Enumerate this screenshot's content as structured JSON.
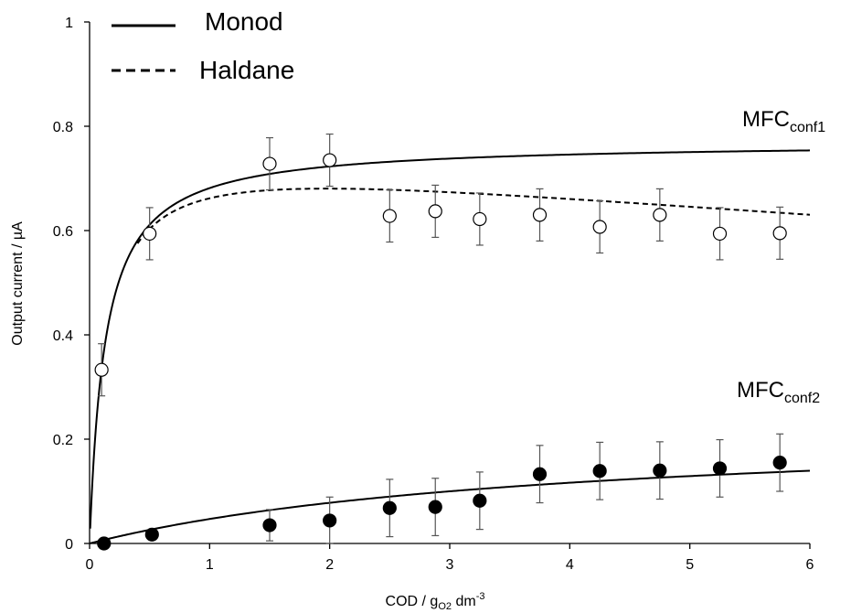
{
  "chart_data": {
    "type": "scatter",
    "xlabel": {
      "main": "COD / g",
      "sub": "O2",
      "mid": " dm",
      "sup": "-3"
    },
    "ylabel": "Output current  / µA",
    "xlim": [
      0,
      6
    ],
    "ylim": [
      0,
      1
    ],
    "x_ticks": [
      0,
      1,
      2,
      3,
      4,
      5,
      6
    ],
    "y_ticks": [
      0,
      0.2,
      0.4,
      0.6,
      0.8,
      1
    ],
    "x_tick_labels": [
      "0",
      "1",
      "2",
      "3",
      "4",
      "5",
      "6"
    ],
    "y_tick_labels": [
      "0",
      "0.2",
      "0.4",
      "0.6",
      "0.8",
      "1"
    ],
    "grid": false,
    "legend_position": "top-left",
    "legend": [
      {
        "label": "Monod",
        "style": "solid"
      },
      {
        "label": "Haldane",
        "style": "dashed"
      }
    ],
    "annotations": [
      {
        "main": "MFC",
        "sub": "conf1"
      },
      {
        "main": "MFC",
        "sub": "conf2"
      }
    ],
    "series": [
      {
        "marker": "open-circle",
        "x": [
          0.1,
          0.5,
          1.5,
          2.0,
          2.5,
          2.88,
          3.25,
          3.75,
          4.25,
          4.75,
          5.25,
          5.75
        ],
        "y": [
          0.333,
          0.594,
          0.728,
          0.735,
          0.628,
          0.637,
          0.622,
          0.63,
          0.607,
          0.63,
          0.594,
          0.595
        ],
        "err": [
          0.05,
          0.05,
          0.05,
          0.05,
          0.05,
          0.05,
          0.05,
          0.05,
          0.05,
          0.05,
          0.05,
          0.05
        ]
      },
      {
        "marker": "filled-circle",
        "x": [
          0.12,
          0.52,
          1.5,
          2.0,
          2.5,
          2.88,
          3.25,
          3.75,
          4.25,
          4.75,
          5.25,
          5.75
        ],
        "y": [
          0.0,
          0.017,
          0.035,
          0.044,
          0.068,
          0.07,
          0.082,
          0.133,
          0.139,
          0.14,
          0.144,
          0.155
        ],
        "err": [
          0.0,
          0.0,
          0.03,
          0.045,
          0.055,
          0.055,
          0.055,
          0.055,
          0.055,
          0.055,
          0.055,
          0.055
        ]
      }
    ],
    "curves": [
      {
        "model": "Monod",
        "style": "solid",
        "params": {
          "imax": 0.77,
          "ks": 0.13
        }
      },
      {
        "model": "Haldane",
        "style": "dashed",
        "params": {
          "imax": 0.77,
          "ks": 0.13,
          "ki": 30
        },
        "x_start": 0.4
      },
      {
        "model": "Monod",
        "style": "solid",
        "params": {
          "imax": 0.23,
          "ks": 3.9
        }
      }
    ]
  }
}
